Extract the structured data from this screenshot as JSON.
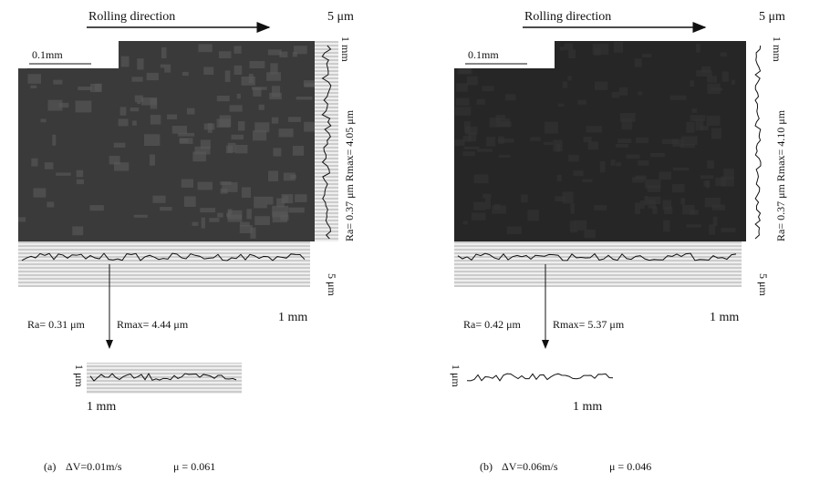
{
  "panels": [
    {
      "rolling_direction": "Rolling direction",
      "scale_bar": "0.1mm",
      "right_profile": {
        "height_scale": "5 μm",
        "length_scale": "1 mm",
        "roughness": "Ra= 0.37 μm  Rmax= 4.05 μm"
      },
      "bottom_profile": {
        "height_scale": "5 μm",
        "length_scale": "1 mm",
        "ra": "Ra= 0.31 μm",
        "rmax": "Rmax= 4.44 μm"
      },
      "detail_profile": {
        "height_scale": "1 μm",
        "length_scale": "1 mm"
      },
      "caption": {
        "label": "(a)",
        "delta_v": "ΔV=0.01m/s",
        "mu": "μ = 0.061"
      }
    },
    {
      "rolling_direction": "Rolling direction",
      "scale_bar": "0.1mm",
      "right_profile": {
        "height_scale": "5 μm",
        "length_scale": "1 mm",
        "roughness": "Ra= 0.37 μm  Rmax= 4.10 μm"
      },
      "bottom_profile": {
        "height_scale": "5 μm",
        "length_scale": "1 mm",
        "ra": "Ra= 0.42 μm",
        "rmax": "Rmax= 5.37 μm"
      },
      "detail_profile": {
        "height_scale": "1 μm",
        "length_scale": "1 mm"
      },
      "caption": {
        "label": "(b)",
        "delta_v": "ΔV=0.06m/s",
        "mu": "μ = 0.046"
      }
    }
  ]
}
